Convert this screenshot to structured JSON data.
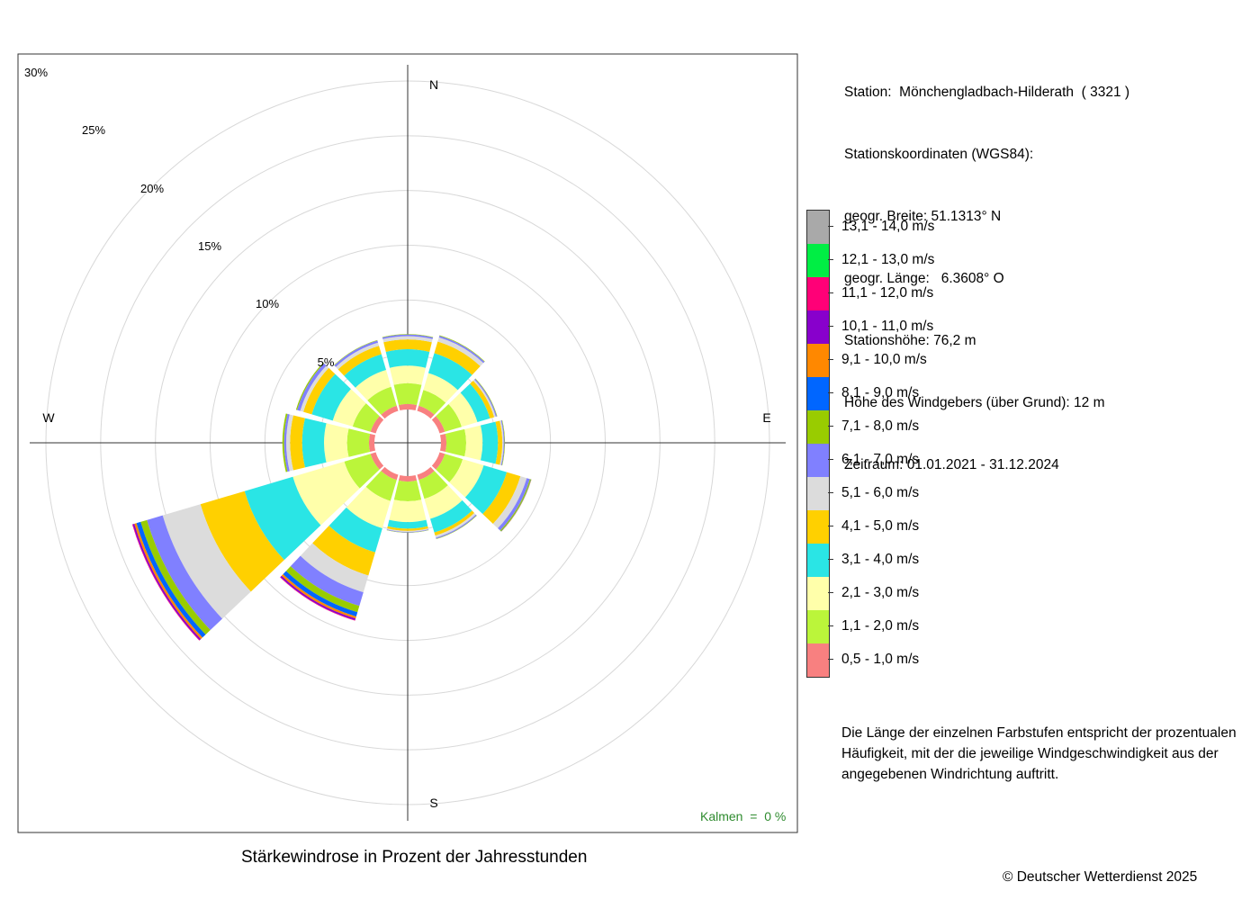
{
  "station_info": {
    "station": "Station:  Mönchengladbach-Hilderath  ( 3321 )",
    "coords_label": "Stationskoordinaten (WGS84):",
    "lat": "geogr. Breite: 51.1313° N",
    "lon": "geogr. Länge:   6.3608° O",
    "elevation": "Stationshöhe: 76,2 m",
    "sensor_height": "Höhe des Windgebers (über Grund): 12 m",
    "period": "Zeitraum: 01.01.2021 - 31.12.2024"
  },
  "legend_colors": [
    "#a9a9a9",
    "#00ee44",
    "#ff0077",
    "#8800cc",
    "#ff8800",
    "#0066ff",
    "#99cc00",
    "#8080ff",
    "#dcdcdc",
    "#ffd000",
    "#2ae5e5",
    "#ffffaa",
    "#bbf53a",
    "#f88080"
  ],
  "note": "Die Länge der einzelnen Farbstufen entspricht der prozentualen Häufigkeit, mit der die jeweilige Windgeschwindigkeit aus der angegebenen Windrichtung auftritt.",
  "calm": "Kalmen  =  0 %",
  "copyright": "© Deutscher Wetterdienst  2025",
  "chart_data": {
    "type": "windrose",
    "title": "Stärkewindrose in Prozent der Jahresstunden",
    "compass_labels": [
      "N",
      "E",
      "S",
      "W"
    ],
    "ring_labels": [
      "5%",
      "10%",
      "15%",
      "20%",
      "25%",
      "30%"
    ],
    "rings": [
      5,
      10,
      15,
      20,
      25,
      30
    ],
    "rmax": 30,
    "grid": true,
    "speed_classes": [
      "0,5 - 1,0 m/s",
      "1,1 - 2,0 m/s",
      "2,1 - 3,0 m/s",
      "3,1 - 4,0 m/s",
      "4,1 - 5,0 m/s",
      "5,1 - 6,0 m/s",
      "6,1 - 7,0 m/s",
      "7,1 - 8,0 m/s",
      "8,1 - 9,0 m/s",
      "9,1 - 10,0 m/s",
      "10,1 - 11,0 m/s",
      "11,1 - 12,0 m/s",
      "12,1 - 13,0 m/s",
      "13,1 - 14,0 m/s"
    ],
    "colors": [
      "#f88080",
      "#bbf53a",
      "#ffffaa",
      "#2ae5e5",
      "#ffd000",
      "#dcdcdc",
      "#8080ff",
      "#99cc00",
      "#0066ff",
      "#ff8800",
      "#8800cc",
      "#ff0077",
      "#00ee44",
      "#a9a9a9"
    ],
    "sectors": [
      {
        "dir": 0,
        "values": [
          0.5,
          1.9,
          1.6,
          1.5,
          0.9,
          0.3,
          0.15,
          0.04,
          0,
          0,
          0,
          0,
          0,
          0
        ]
      },
      {
        "dir": 30,
        "values": [
          0.5,
          1.5,
          1.6,
          1.9,
          1.1,
          0.4,
          0.15,
          0.05,
          0,
          0,
          0,
          0,
          0,
          0
        ]
      },
      {
        "dir": 60,
        "values": [
          0.5,
          1.6,
          1.5,
          1.2,
          0.4,
          0.15,
          0.1,
          0.04,
          0,
          0,
          0,
          0,
          0,
          0
        ]
      },
      {
        "dir": 90,
        "values": [
          0.5,
          1.8,
          1.5,
          1.4,
          0.4,
          0.12,
          0.08,
          0.04,
          0,
          0,
          0,
          0,
          0,
          0
        ]
      },
      {
        "dir": 120,
        "values": [
          0.5,
          1.7,
          2.0,
          2.2,
          1.3,
          0.6,
          0.3,
          0.1,
          0.03,
          0.02,
          0,
          0,
          0,
          0
        ]
      },
      {
        "dir": 150,
        "values": [
          0.5,
          1.8,
          1.9,
          1.3,
          0.3,
          0.2,
          0.1,
          0.03,
          0,
          0,
          0,
          0,
          0,
          0
        ]
      },
      {
        "dir": 180,
        "values": [
          0.5,
          1.8,
          1.9,
          0.6,
          0.2,
          0.1,
          0.05,
          0.02,
          0,
          0,
          0,
          0,
          0,
          0
        ]
      },
      {
        "dir": 210,
        "values": [
          0.5,
          2.0,
          2.6,
          2.3,
          2.2,
          1.6,
          1.3,
          0.6,
          0.4,
          0.2,
          0.15,
          0.05,
          0,
          0
        ]
      },
      {
        "dir": 240,
        "values": [
          0.5,
          2.5,
          4.9,
          4.6,
          4.2,
          3.6,
          1.5,
          0.6,
          0.4,
          0.2,
          0.15,
          0.05,
          0,
          0
        ]
      },
      {
        "dir": 270,
        "values": [
          0.5,
          2.0,
          2.1,
          2.0,
          1.1,
          0.35,
          0.2,
          0.15,
          0,
          0,
          0,
          0,
          0,
          0
        ]
      },
      {
        "dir": 300,
        "values": [
          0.5,
          1.7,
          1.9,
          2.0,
          0.8,
          0.3,
          0.3,
          0.1,
          0,
          0,
          0,
          0,
          0,
          0
        ]
      },
      {
        "dir": 330,
        "values": [
          0.5,
          1.8,
          1.6,
          1.5,
          0.8,
          0.3,
          0.2,
          0.04,
          0,
          0,
          0,
          0,
          0,
          0
        ]
      }
    ]
  }
}
